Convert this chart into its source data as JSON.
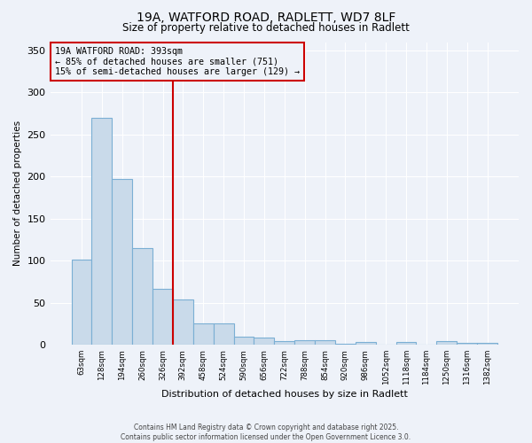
{
  "title_line1": "19A, WATFORD ROAD, RADLETT, WD7 8LF",
  "title_line2": "Size of property relative to detached houses in Radlett",
  "xlabel": "Distribution of detached houses by size in Radlett",
  "ylabel": "Number of detached properties",
  "categories": [
    "63sqm",
    "128sqm",
    "194sqm",
    "260sqm",
    "326sqm",
    "392sqm",
    "458sqm",
    "524sqm",
    "590sqm",
    "656sqm",
    "722sqm",
    "788sqm",
    "854sqm",
    "920sqm",
    "986sqm",
    "1052sqm",
    "1118sqm",
    "1184sqm",
    "1250sqm",
    "1316sqm",
    "1382sqm"
  ],
  "values": [
    101,
    270,
    197,
    115,
    67,
    54,
    26,
    26,
    10,
    9,
    4,
    5,
    6,
    1,
    3,
    0,
    3,
    0,
    4,
    2,
    2
  ],
  "bar_color": "#c9daea",
  "bar_edge_color": "#7bafd4",
  "red_line_index": 5,
  "red_line_color": "#cc0000",
  "annotation_line1": "19A WATFORD ROAD: 393sqm",
  "annotation_line2": "← 85% of detached houses are smaller (751)",
  "annotation_line3": "15% of semi-detached houses are larger (129) →",
  "ylim": [
    0,
    360
  ],
  "yticks": [
    0,
    50,
    100,
    150,
    200,
    250,
    300,
    350
  ],
  "footer_text": "Contains HM Land Registry data © Crown copyright and database right 2025.\nContains public sector information licensed under the Open Government Licence 3.0.",
  "background_color": "#eef2f9",
  "grid_color": "#ffffff"
}
